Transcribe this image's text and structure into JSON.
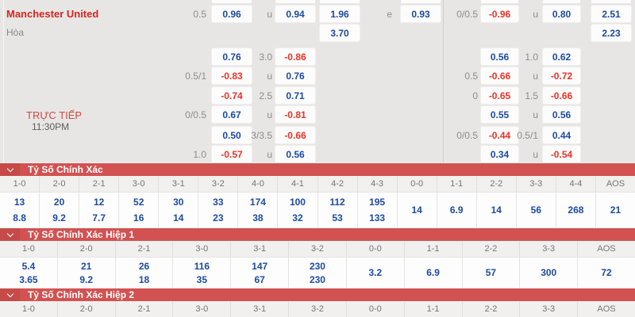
{
  "colors": {
    "panel_bg": "#e8e6e4",
    "box_bg": "#fcfcfc",
    "positive_odds": "#1d4aa0",
    "negative_odds": "#ed3124",
    "header_red": "#d25251",
    "home_team_red": "#d5261e",
    "live_red": "#cb4a42"
  },
  "odds_panel": {
    "home_team": "Manchester United",
    "draw_label": "Hòa",
    "live_label": "TRỰC TIẾP",
    "kickoff_time": "11:30PM",
    "rows": [
      [
        "0.5",
        "0.96",
        "u",
        "0.94",
        "1.96",
        "e",
        "0.93",
        "0/0.5",
        "-0.96",
        "u",
        "0.80",
        "2.51"
      ],
      [
        null,
        null,
        null,
        null,
        "3.70",
        null,
        null,
        null,
        null,
        null,
        null,
        "2.23"
      ],
      [
        null,
        "0.76",
        "3.0",
        "-0.86",
        null,
        null,
        null,
        null,
        "0.56",
        "1.0",
        "0.62",
        null
      ],
      [
        "0.5/1",
        "-0.83",
        "u",
        "0.76",
        null,
        null,
        null,
        "0.5",
        "-0.66",
        "u",
        "-0.72",
        null
      ],
      [
        null,
        "-0.74",
        "2.5",
        "0.71",
        null,
        null,
        null,
        "0",
        "-0.65",
        "1.5",
        "-0.66",
        null
      ],
      [
        "0/0.5",
        "0.67",
        "u",
        "-0.81",
        null,
        null,
        null,
        null,
        "0.55",
        "u",
        "0.56",
        null
      ],
      [
        null,
        "0.50",
        "3/3.5",
        "-0.66",
        null,
        null,
        null,
        "0/0.5",
        "-0.44",
        "0.5/1",
        "0.44",
        null
      ],
      [
        "1.0",
        "-0.57",
        "u",
        "0.56",
        null,
        null,
        null,
        null,
        "0.34",
        "u",
        "-0.54",
        null
      ]
    ]
  },
  "sections": [
    {
      "title": "Tỷ Số Chính Xác",
      "columns": [
        "1-0",
        "2-0",
        "2-1",
        "3-0",
        "3-1",
        "3-2",
        "4-0",
        "4-1",
        "4-2",
        "4-3",
        "0-0",
        "1-1",
        "2-2",
        "3-3",
        "4-4",
        "AOS"
      ],
      "values": [
        [
          "13",
          "8.8"
        ],
        [
          "20",
          "9.2"
        ],
        [
          "12",
          "7.7"
        ],
        [
          "52",
          "16"
        ],
        [
          "30",
          "14"
        ],
        [
          "33",
          "23"
        ],
        [
          "174",
          "38"
        ],
        [
          "100",
          "32"
        ],
        [
          "112",
          "53"
        ],
        [
          "195",
          "133"
        ],
        [
          "14"
        ],
        [
          "6.9"
        ],
        [
          "14"
        ],
        [
          "56"
        ],
        [
          "268"
        ],
        [
          "21"
        ]
      ]
    },
    {
      "title": "Tỷ Số Chính Xác Hiệp 1",
      "columns": [
        "1-0",
        "2-0",
        "2-1",
        "3-0",
        "3-1",
        "3-2",
        "0-0",
        "1-1",
        "2-2",
        "3-3",
        "AOS"
      ],
      "values": [
        [
          "5.4",
          "3.65"
        ],
        [
          "21",
          "9.2"
        ],
        [
          "26",
          "18"
        ],
        [
          "116",
          "35"
        ],
        [
          "147",
          "67"
        ],
        [
          "230",
          "230"
        ],
        [
          "3.2"
        ],
        [
          "6.9"
        ],
        [
          "57"
        ],
        [
          "300"
        ],
        [
          "72"
        ]
      ]
    },
    {
      "title": "Tỷ Số Chính Xác Hiệp 2",
      "columns": [
        "1-0",
        "2-0",
        "2-1",
        "3-0",
        "3-1",
        "3-2",
        "0-0",
        "1-1",
        "2-2",
        "3-3",
        "AOS"
      ],
      "values": []
    }
  ]
}
